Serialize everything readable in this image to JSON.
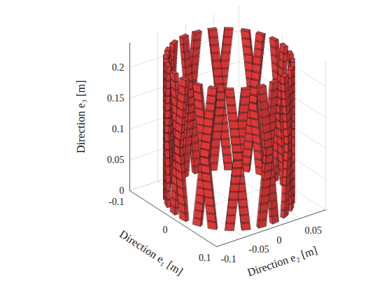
{
  "chart_data": {
    "type": "lattice",
    "xlabel": "Direction e₁ [m]",
    "ylabel": "Direction e₂ [m]",
    "zlabel": "Direction e₃ [m]",
    "xlim": [
      -0.1,
      0.1
    ],
    "ylim": [
      -0.1,
      0.095
    ],
    "zlim": [
      0,
      0.24
    ],
    "xticks": [
      -0.1,
      0,
      0.1
    ],
    "yticks": [
      -0.1,
      -0.05,
      0,
      0.05
    ],
    "zticks": [
      0,
      0.05,
      0.1,
      0.15,
      0.2
    ],
    "grid": true,
    "color": "#f03c3c",
    "structure": {
      "radius": 0.09,
      "height": 0.23,
      "helices_per_direction": 12,
      "helix_angle_span_deg": 15,
      "plates_per_helix": 18,
      "plate_width": 0.012,
      "plate_thickness": 0.006
    }
  }
}
